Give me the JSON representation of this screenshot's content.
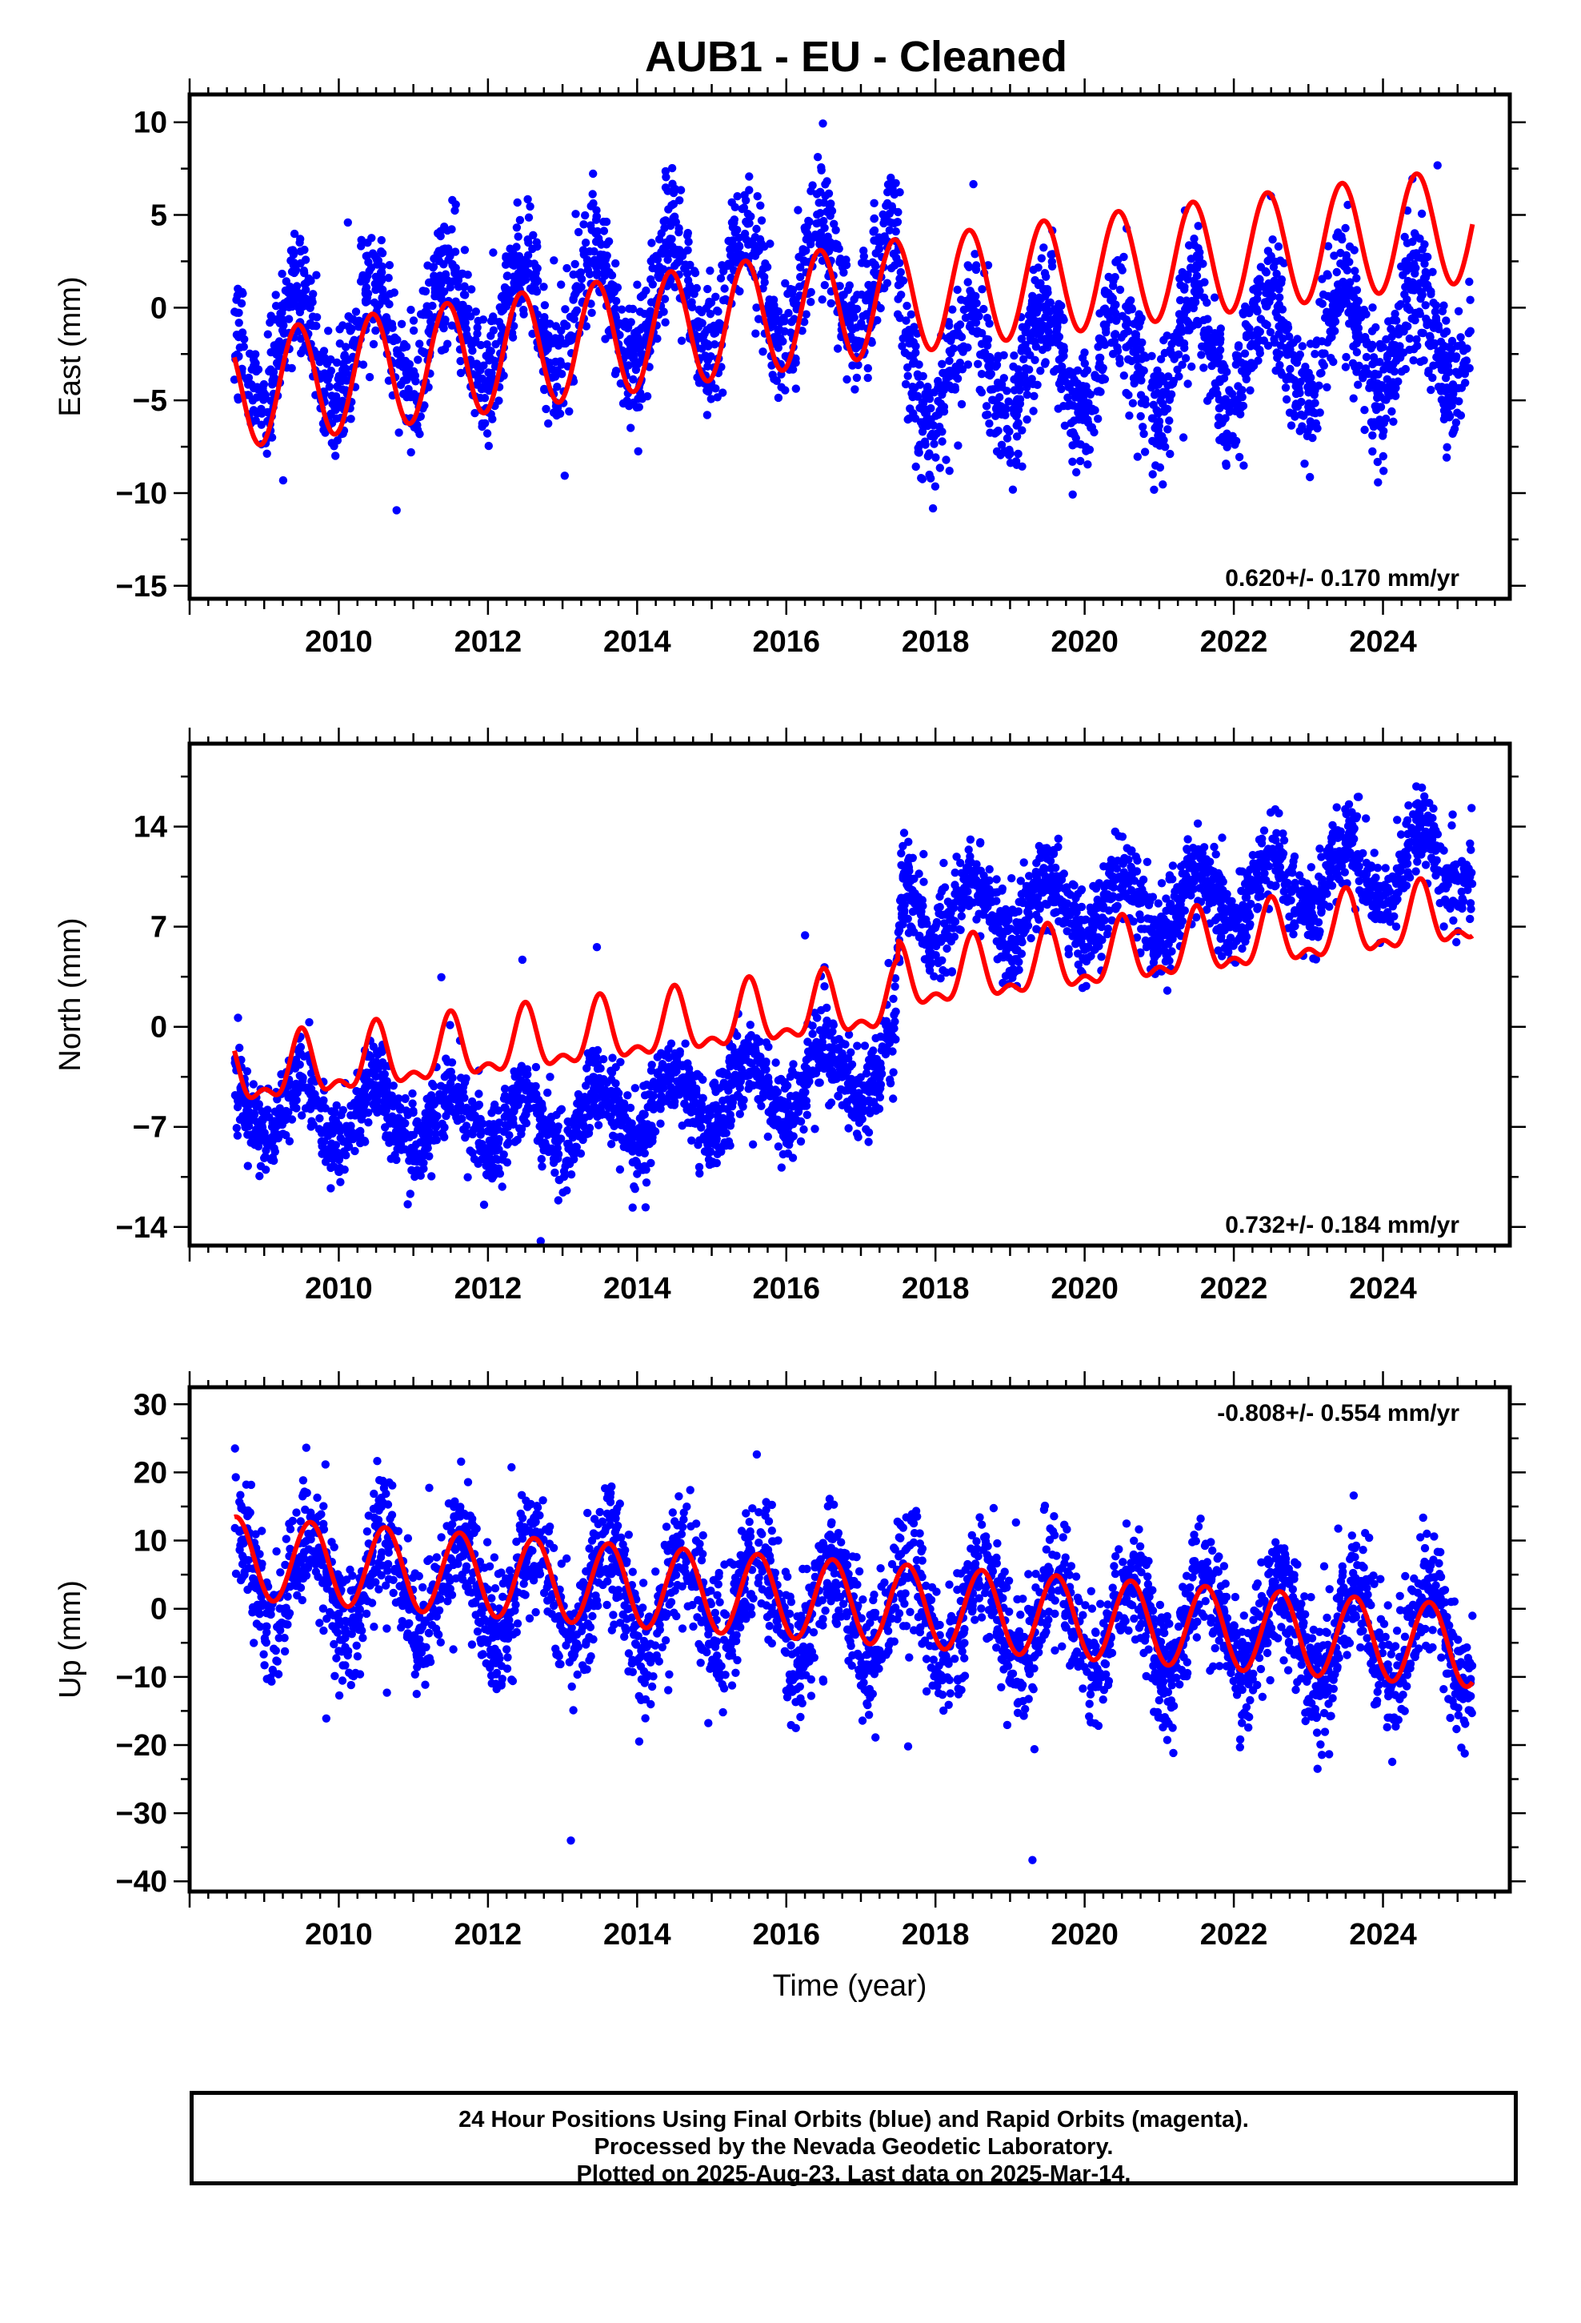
{
  "title": "AUB1  - EU - Cleaned",
  "footer": {
    "line1": "24 Hour Positions Using Final Orbits (blue) and Rapid Orbits (magenta).",
    "line2": "Processed by the Nevada Geodetic Laboratory.",
    "line3": "Plotted on 2025-Aug-23. Last data on 2025-Mar-14."
  },
  "colors": {
    "observations": "#0000ff",
    "model": "#ff0000",
    "frame": "#000000"
  },
  "chart_data": [
    {
      "type": "scatter",
      "name": "east",
      "ylabel": "East (mm)",
      "xlabel": "",
      "xlim": [
        2008.0,
        2025.7
      ],
      "ylim": [
        -15.7,
        11.5
      ],
      "xticks": [
        2010,
        2012,
        2014,
        2016,
        2018,
        2020,
        2022,
        2024
      ],
      "yticks": [
        10,
        5,
        0,
        -5,
        -10,
        -15
      ],
      "ytick_labels": [
        "10",
        "5",
        "0",
        "−5",
        "−10",
        "−15"
      ],
      "rate_label": "0.620+/- 0.170 mm/yr",
      "rate_position": "bottom-right",
      "data_range": [
        2008.6,
        2025.2
      ],
      "trend_centers": [
        [
          2008.6,
          -2.5
        ],
        [
          2017.45,
          2.0
        ],
        [
          2017.55,
          -3.5
        ],
        [
          2025.2,
          -1.5
        ]
      ],
      "scatter_amp": 3.0,
      "scatter_noise": 1.7,
      "model": {
        "segments": [
          {
            "t0": 2008.6,
            "t1": 2017.5,
            "y0": -4.5,
            "y1": 0.6,
            "amp": 3.1,
            "amp2": 0.0
          },
          {
            "t0": 2017.5,
            "t1": 2025.2,
            "y0": 0.6,
            "y1": 4.5,
            "amp": 3.1,
            "amp2": 0.0
          }
        ],
        "phase": 2024.45
      }
    },
    {
      "type": "scatter",
      "name": "north",
      "ylabel": "North (mm)",
      "xlabel": "",
      "xlim": [
        2008.0,
        2025.7
      ],
      "ylim": [
        -15.3,
        19.8
      ],
      "xticks": [
        2010,
        2012,
        2014,
        2016,
        2018,
        2020,
        2022,
        2024
      ],
      "yticks": [
        14,
        7,
        0,
        -7,
        -14
      ],
      "ytick_labels": [
        "14",
        "7",
        "0",
        "−7",
        "−14"
      ],
      "rate_label": "0.732+/- 0.184 mm/yr",
      "rate_position": "bottom-right",
      "data_range": [
        2008.6,
        2025.2
      ],
      "trend_centers": [
        [
          2008.6,
          -5.5
        ],
        [
          2012.8,
          -7.0
        ],
        [
          2017.45,
          -2.5
        ],
        [
          2017.55,
          8.0
        ],
        [
          2021.0,
          8.5
        ],
        [
          2025.2,
          12.0
        ]
      ],
      "scatter_amp": 2.2,
      "scatter_noise": 1.5,
      "model": {
        "segments": [
          {
            "t0": 2008.6,
            "t1": 2017.5,
            "y0": -3.6,
            "y1": 1.7,
            "amp": 2.0,
            "amp2": 1.0
          },
          {
            "t0": 2017.5,
            "t1": 2025.2,
            "y0": 3.0,
            "y1": 7.8,
            "amp": 2.0,
            "amp2": 1.0
          }
        ],
        "phase": 2023.5
      }
    },
    {
      "type": "scatter",
      "name": "up",
      "ylabel": "Up (mm)",
      "xlabel": "Time (year)",
      "xlim": [
        2008.0,
        2025.7
      ],
      "ylim": [
        -41.5,
        32.5
      ],
      "xticks": [
        2010,
        2012,
        2014,
        2016,
        2018,
        2020,
        2022,
        2024
      ],
      "yticks": [
        30,
        20,
        10,
        0,
        -10,
        -20,
        -30,
        -40
      ],
      "ytick_labels": [
        "30",
        "20",
        "10",
        "0",
        "−10",
        "−20",
        "−30",
        "−40"
      ],
      "rate_label": "-0.808+/- 0.554 mm/yr",
      "rate_position": "top-right",
      "data_range": [
        2008.6,
        2025.2
      ],
      "trend_centers": [
        [
          2008.6,
          5.0
        ],
        [
          2025.2,
          -5.0
        ]
      ],
      "scatter_amp": 7.0,
      "scatter_noise": 4.5,
      "model": {
        "segments": [
          {
            "t0": 2008.6,
            "t1": 2025.2,
            "y0": 7.5,
            "y1": -5.5,
            "amp": 6.0,
            "amp2": 0.0
          }
        ],
        "phase": 2011.62
      }
    }
  ]
}
